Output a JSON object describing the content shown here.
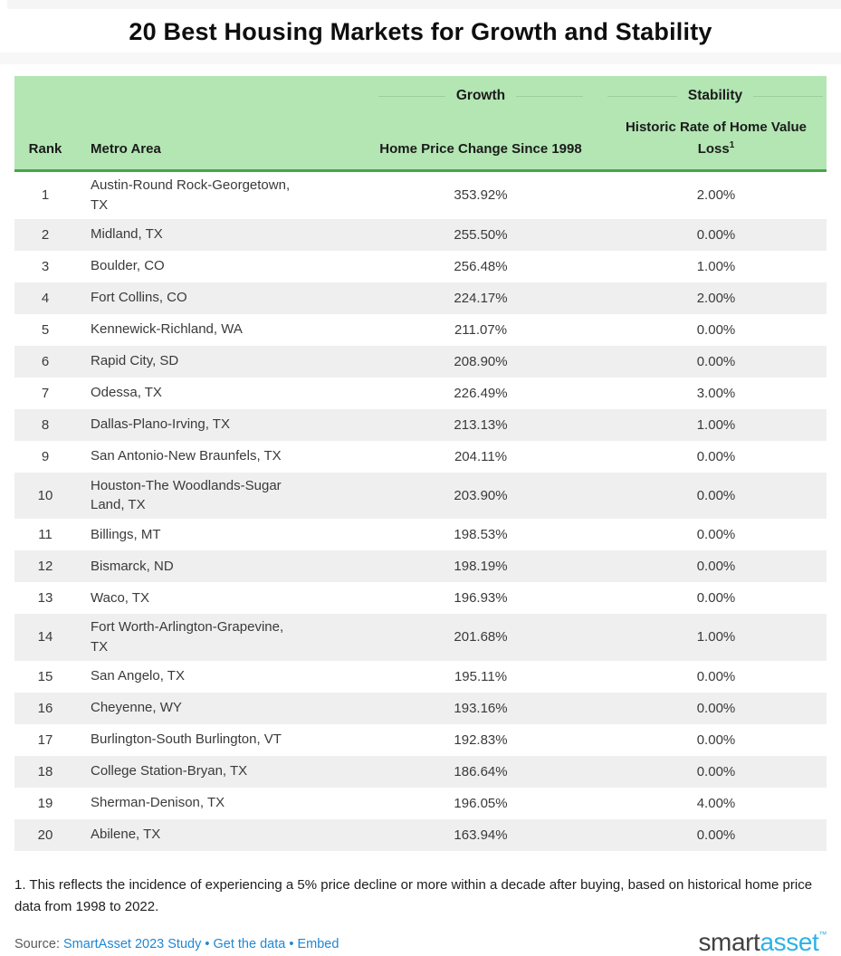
{
  "title": "20 Best Housing Markets for Growth and Stability",
  "chart_data": {
    "type": "table",
    "title": "20 Best Housing Markets for Growth and Stability",
    "group_headers": {
      "growth": "Growth",
      "stability": "Stability"
    },
    "columns": {
      "rank": "Rank",
      "metro": "Metro Area",
      "growth": "Home Price Change Since 1998",
      "stability": "Historic Rate of Home Value Loss",
      "stability_footnote_marker": "1"
    },
    "rows": [
      {
        "rank": "1",
        "metro": "Austin-Round Rock-Georgetown, TX",
        "growth": "353.92%",
        "stability": "2.00%"
      },
      {
        "rank": "2",
        "metro": "Midland, TX",
        "growth": "255.50%",
        "stability": "0.00%"
      },
      {
        "rank": "3",
        "metro": "Boulder, CO",
        "growth": "256.48%",
        "stability": "1.00%"
      },
      {
        "rank": "4",
        "metro": "Fort Collins, CO",
        "growth": "224.17%",
        "stability": "2.00%"
      },
      {
        "rank": "5",
        "metro": "Kennewick-Richland, WA",
        "growth": "211.07%",
        "stability": "0.00%"
      },
      {
        "rank": "6",
        "metro": "Rapid City, SD",
        "growth": "208.90%",
        "stability": "0.00%"
      },
      {
        "rank": "7",
        "metro": "Odessa, TX",
        "growth": "226.49%",
        "stability": "3.00%"
      },
      {
        "rank": "8",
        "metro": "Dallas-Plano-Irving, TX",
        "growth": "213.13%",
        "stability": "1.00%"
      },
      {
        "rank": "9",
        "metro": "San Antonio-New Braunfels, TX",
        "growth": "204.11%",
        "stability": "0.00%"
      },
      {
        "rank": "10",
        "metro": "Houston-The Woodlands-Sugar\nLand, TX",
        "growth": "203.90%",
        "stability": "0.00%"
      },
      {
        "rank": "11",
        "metro": "Billings, MT",
        "growth": "198.53%",
        "stability": "0.00%"
      },
      {
        "rank": "12",
        "metro": "Bismarck, ND",
        "growth": "198.19%",
        "stability": "0.00%"
      },
      {
        "rank": "13",
        "metro": "Waco, TX",
        "growth": "196.93%",
        "stability": "0.00%"
      },
      {
        "rank": "14",
        "metro": "Fort Worth-Arlington-Grapevine, TX",
        "growth": "201.68%",
        "stability": "1.00%"
      },
      {
        "rank": "15",
        "metro": "San Angelo, TX",
        "growth": "195.11%",
        "stability": "0.00%"
      },
      {
        "rank": "16",
        "metro": "Cheyenne, WY",
        "growth": "193.16%",
        "stability": "0.00%"
      },
      {
        "rank": "17",
        "metro": "Burlington-South Burlington, VT",
        "growth": "192.83%",
        "stability": "0.00%"
      },
      {
        "rank": "18",
        "metro": "College Station-Bryan, TX",
        "growth": "186.64%",
        "stability": "0.00%"
      },
      {
        "rank": "19",
        "metro": "Sherman-Denison, TX",
        "growth": "196.05%",
        "stability": "4.00%"
      },
      {
        "rank": "20",
        "metro": "Abilene, TX",
        "growth": "163.94%",
        "stability": "0.00%"
      }
    ]
  },
  "footnote": "1. This reflects the incidence of experiencing a 5% price decline or more within a decade after buying, based on historical home price data from 1998 to 2022.",
  "source": {
    "prefix": "Source:",
    "link_study": "SmartAsset 2023 Study",
    "link_data": "Get the data",
    "link_embed": "Embed",
    "separator": "•"
  },
  "logo": {
    "part1": "smart",
    "part2": "asset",
    "tm": "™"
  },
  "colors": {
    "header_green": "#b3e6b3",
    "header_border_green": "#46a546",
    "stripe_gray": "#efefef",
    "link_blue": "#1e87d5",
    "logo_dark": "#414042",
    "logo_blue": "#2cb2e5"
  }
}
